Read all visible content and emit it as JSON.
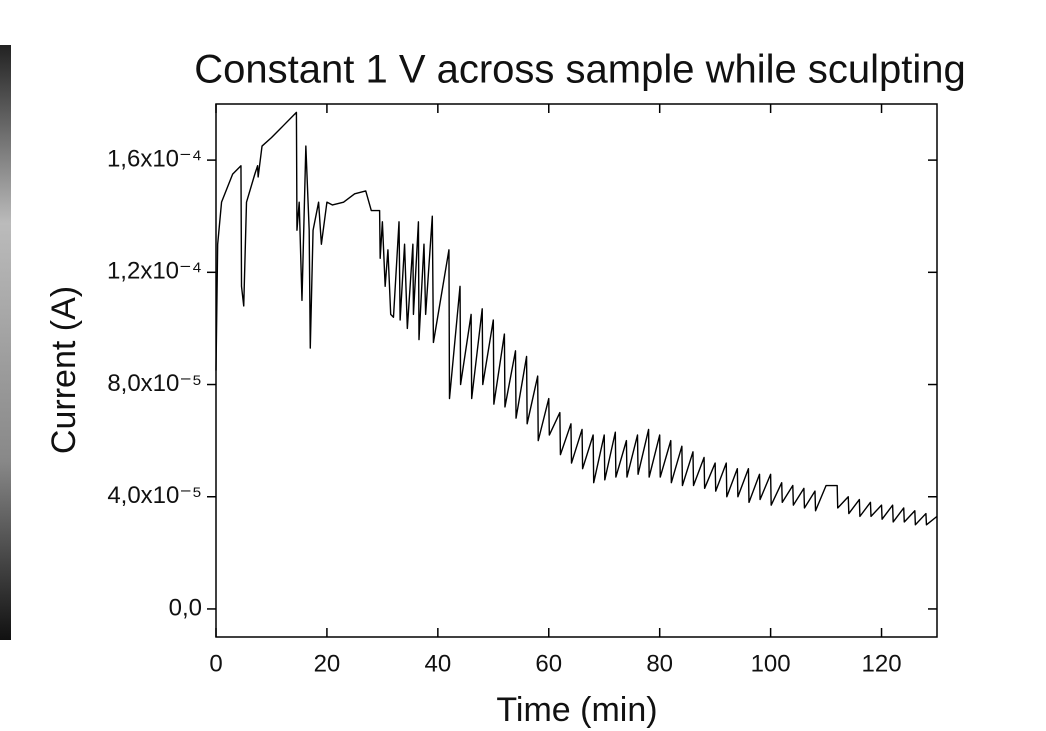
{
  "chart_data": {
    "type": "line",
    "title": "Constant 1 V across sample while sculpting",
    "x_label": "Time (min)",
    "y_label": "Current (A)",
    "xlim": [
      0,
      130
    ],
    "ylim": [
      -1e-05,
      0.00018
    ],
    "xticks": [
      0,
      20,
      40,
      60,
      80,
      100,
      120
    ],
    "yticks": [
      {
        "value": 0,
        "label": "0,0"
      },
      {
        "value": 4e-05,
        "label": "4,0x10⁻⁵"
      },
      {
        "value": 8e-05,
        "label": "8,0x10⁻⁵"
      },
      {
        "value": 0.00012,
        "label": "1,2x10⁻⁴"
      },
      {
        "value": 0.00016,
        "label": "1,6x10⁻⁴"
      }
    ],
    "color": "#000000",
    "x": [
      0,
      0.3,
      1,
      3,
      4.5,
      4.6,
      5,
      5.5,
      7,
      7.5,
      7.6,
      8.3,
      10,
      12,
      14.5,
      14.6,
      15,
      15.5,
      16.2,
      16.8,
      17,
      17.5,
      18.5,
      19,
      20,
      21,
      23,
      25,
      27,
      28,
      29.5,
      29.6,
      30,
      30.5,
      31,
      31.5,
      32,
      33,
      33.2,
      34,
      34.5,
      35.5,
      35.6,
      36.5,
      36.6,
      37.5,
      37.8,
      39,
      39.2,
      42,
      42.1,
      44,
      44.1,
      46,
      46.1,
      48,
      48.1,
      50,
      50.1,
      52,
      52.1,
      54,
      54.1,
      56,
      56.1,
      58,
      58.1,
      60,
      60.1,
      62,
      62.1,
      64,
      64.1,
      66,
      66.1,
      68,
      68.1,
      70,
      70.1,
      72,
      72.1,
      74,
      74.1,
      76,
      76.1,
      78,
      78.1,
      80,
      80.1,
      82,
      82.1,
      84,
      84.1,
      86,
      86.1,
      88,
      88.1,
      90,
      90.1,
      92,
      92.1,
      94,
      94.1,
      96,
      96.1,
      98,
      98.1,
      100,
      100.1,
      102,
      102.1,
      104,
      104.1,
      106,
      106.1,
      108,
      108.1,
      110,
      112,
      112.1,
      114,
      114.1,
      116,
      116.1,
      118,
      118.1,
      120,
      120.1,
      122,
      122.1,
      124,
      124.1,
      126,
      126.1,
      128,
      128.1,
      130
    ],
    "values": [
      8.5e-05,
      0.00013,
      0.000145,
      0.000155,
      0.000158,
      0.000115,
      0.000108,
      0.000145,
      0.000155,
      0.000158,
      0.000154,
      0.000165,
      0.000168,
      0.000172,
      0.000177,
      0.000135,
      0.000145,
      0.00011,
      0.000165,
      0.000135,
      9.3e-05,
      0.000135,
      0.000145,
      0.00013,
      0.000145,
      0.000144,
      0.000145,
      0.000148,
      0.000149,
      0.000142,
      0.000142,
      0.000125,
      0.000138,
      0.000115,
      0.000128,
      0.000105,
      0.000104,
      0.000138,
      0.000103,
      0.00013,
      0.0001,
      0.00013,
      0.000105,
      0.000138,
      9.6e-05,
      0.00013,
      0.000105,
      0.00014,
      9.5e-05,
      0.000128,
      7.5e-05,
      0.000115,
      8e-05,
      0.000105,
      7.5e-05,
      0.000107,
      8e-05,
      0.000103,
      7.3e-05,
      9.8e-05,
      7.2e-05,
      9.2e-05,
      6.8e-05,
      9e-05,
      6.6e-05,
      8.3e-05,
      6e-05,
      7.5e-05,
      6.2e-05,
      7e-05,
      5.5e-05,
      6.6e-05,
      5.2e-05,
      6.4e-05,
      5e-05,
      6.2e-05,
      4.5e-05,
      6.2e-05,
      4.6e-05,
      6.3e-05,
      4.7e-05,
      6e-05,
      4.7e-05,
      6.2e-05,
      4.8e-05,
      6.4e-05,
      4.7e-05,
      6.2e-05,
      4.7e-05,
      6e-05,
      4.5e-05,
      5.8e-05,
      4.4e-05,
      5.6e-05,
      4.4e-05,
      5.4e-05,
      4.3e-05,
      5.2e-05,
      4.2e-05,
      5.2e-05,
      4e-05,
      5e-05,
      4e-05,
      5e-05,
      3.8e-05,
      4.8e-05,
      3.9e-05,
      4.8e-05,
      3.7e-05,
      4.5e-05,
      3.8e-05,
      4.4e-05,
      3.7e-05,
      4.3e-05,
      3.6e-05,
      4.2e-05,
      3.5e-05,
      4.4e-05,
      4.4e-05,
      3.6e-05,
      4e-05,
      3.4e-05,
      3.9e-05,
      3.3e-05,
      3.8e-05,
      3.3e-05,
      3.7e-05,
      3.2e-05,
      3.7e-05,
      3.1e-05,
      3.6e-05,
      3.1e-05,
      3.5e-05,
      3e-05,
      3.4e-05,
      3e-05,
      3.3e-05
    ]
  }
}
